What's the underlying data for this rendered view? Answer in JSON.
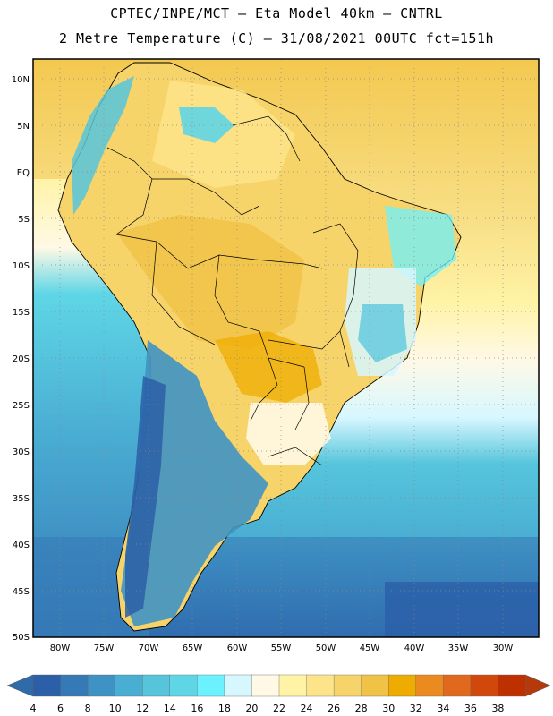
{
  "header": {
    "line1": "CPTEC/INPE/MCT –  Eta Model 40km – CNTRL",
    "line2": "2 Metre Temperature (C) – 31/08/2021 00UTC fct=151h"
  },
  "map": {
    "lat_labels": [
      "10N",
      "5N",
      "EQ",
      "5S",
      "10S",
      "15S",
      "20S",
      "25S",
      "30S",
      "35S",
      "40S",
      "45S",
      "50S"
    ],
    "lon_labels": [
      "80W",
      "75W",
      "70W",
      "65W",
      "60W",
      "55W",
      "50W",
      "45W",
      "40W",
      "35W",
      "30W"
    ]
  },
  "colorbar": {
    "labels": [
      "4",
      "6",
      "8",
      "10",
      "12",
      "14",
      "16",
      "18",
      "20",
      "22",
      "24",
      "26",
      "28",
      "30",
      "32",
      "34",
      "36",
      "38"
    ],
    "colors": [
      "#2b5fa7",
      "#3579b6",
      "#3f93c4",
      "#4aaed3",
      "#56c5dc",
      "#5fd6e6",
      "#6cf2ff",
      "#d7f7ff",
      "#fff9e6",
      "#fff3a6",
      "#fde48a",
      "#f7d46a",
      "#f0c245",
      "#efac00",
      "#eb8a1f",
      "#e0691d",
      "#d1480d",
      "#bf3000"
    ],
    "left_arrow_color": "#2f6aa9",
    "right_arrow_color": "#b53a0b"
  }
}
